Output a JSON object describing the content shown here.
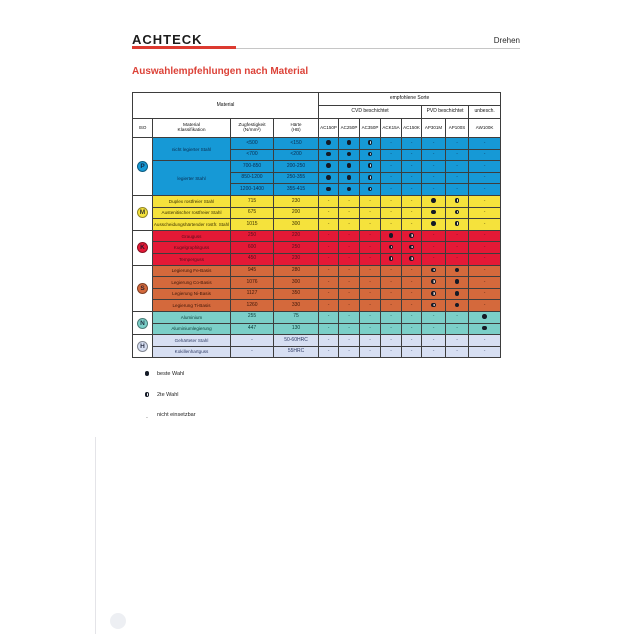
{
  "page": {
    "brand": "ACHTECK",
    "section_label": "Drehen",
    "title": "Auswahlempfehlungen nach Material",
    "colors": {
      "accent_red": "#dc3a30"
    }
  },
  "table": {
    "header": {
      "material": "Material",
      "recommended": "empfohlene Sorte",
      "groups": [
        {
          "label": "CVD beschichtet",
          "span": 5
        },
        {
          "label": "PVD beschichtet",
          "span": 2
        },
        {
          "label": "unbesch.",
          "span": 1
        }
      ],
      "columns": {
        "iso": "ISO",
        "klass": "Material\nKlassifikation",
        "zug": "Zugfestigkeit\n(N/mm²)",
        "haerte": "Härte\n(HB)"
      },
      "grades": [
        "AC150P",
        "AC250P",
        "AC350P",
        "ACK15A",
        "AC150K",
        "AP301M",
        "AP100S",
        "AW100K"
      ]
    },
    "sections": [
      {
        "iso": "P",
        "color": "#1699d6",
        "text": "#0b2b4e",
        "rows": [
          {
            "material": "nicht legierter Stahl",
            "rowspan": 2,
            "zug": "<500",
            "haerte": "<150",
            "ratings": [
              "best",
              "best",
              "second",
              "none",
              "none",
              "none",
              "none",
              "none"
            ]
          },
          {
            "zug": "<700",
            "haerte": "<200",
            "ratings": [
              "best",
              "best",
              "second",
              "none",
              "none",
              "none",
              "none",
              "none"
            ]
          },
          {
            "material": "legierter Stahl",
            "rowspan": 3,
            "zug": "700-850",
            "haerte": "200-250",
            "ratings": [
              "best",
              "best",
              "second",
              "none",
              "none",
              "none",
              "none",
              "none"
            ]
          },
          {
            "zug": "850-1200",
            "haerte": "250-355",
            "ratings": [
              "best",
              "best",
              "second",
              "none",
              "none",
              "none",
              "none",
              "none"
            ]
          },
          {
            "zug": "1200-1400",
            "haerte": "355-415",
            "ratings": [
              "best",
              "best",
              "second",
              "none",
              "none",
              "none",
              "none",
              "none"
            ]
          }
        ]
      },
      {
        "iso": "M",
        "color": "#f5e23c",
        "text": "#3c3200",
        "rows": [
          {
            "material": "Duplex rostfreier Stahl",
            "zug": "715",
            "haerte": "230",
            "ratings": [
              "none",
              "none",
              "none",
              "none",
              "none",
              "best",
              "second",
              "none"
            ]
          },
          {
            "material": "Austenitischer rostfreier Stahl",
            "zug": "675",
            "haerte": "200",
            "ratings": [
              "none",
              "none",
              "none",
              "none",
              "none",
              "best",
              "second",
              "none"
            ]
          },
          {
            "material": "Ausscheidungshärtender rostfr. Stahl",
            "zug": "1015",
            "haerte": "300",
            "ratings": [
              "none",
              "none",
              "none",
              "none",
              "none",
              "best",
              "second",
              "none"
            ]
          }
        ]
      },
      {
        "iso": "K",
        "color": "#e41936",
        "text": "#57101c",
        "rows": [
          {
            "material": "Grauguss",
            "zug": "250",
            "haerte": "220",
            "ratings": [
              "none",
              "none",
              "none",
              "best",
              "second",
              "none",
              "none",
              "none"
            ]
          },
          {
            "material": "Kugelgraphitguss",
            "zug": "600",
            "haerte": "250",
            "ratings": [
              "none",
              "none",
              "none",
              "second",
              "second",
              "none",
              "none",
              "none"
            ]
          },
          {
            "material": "Temperguss",
            "zug": "450",
            "haerte": "230",
            "ratings": [
              "none",
              "none",
              "none",
              "second",
              "second",
              "none",
              "none",
              "none"
            ]
          }
        ]
      },
      {
        "iso": "S",
        "color": "#d4693c",
        "text": "#3f1708",
        "rows": [
          {
            "material": "Legierung Fe-Basis",
            "zug": "945",
            "haerte": "280",
            "ratings": [
              "none",
              "none",
              "none",
              "none",
              "none",
              "second",
              "best",
              "none"
            ]
          },
          {
            "material": "Legierung Co-Basis",
            "zug": "1076",
            "haerte": "300",
            "ratings": [
              "none",
              "none",
              "none",
              "none",
              "none",
              "second",
              "best",
              "none"
            ]
          },
          {
            "material": "Legierung Ni-Basis",
            "zug": "1127",
            "haerte": "350",
            "ratings": [
              "none",
              "none",
              "none",
              "none",
              "none",
              "second",
              "best",
              "none"
            ]
          },
          {
            "material": "Legierung Ti-Basis",
            "zug": "1260",
            "haerte": "330",
            "ratings": [
              "none",
              "none",
              "none",
              "none",
              "none",
              "second",
              "best",
              "none"
            ]
          }
        ]
      },
      {
        "iso": "N",
        "color": "#7bcfc8",
        "text": "#0f403c",
        "rows": [
          {
            "material": "Aluminium",
            "zug": "255",
            "haerte": "75",
            "ratings": [
              "none",
              "none",
              "none",
              "none",
              "none",
              "none",
              "none",
              "best"
            ]
          },
          {
            "material": "Aluminiumlegierung",
            "zug": "447",
            "haerte": "130",
            "ratings": [
              "none",
              "none",
              "none",
              "none",
              "none",
              "none",
              "none",
              "best"
            ]
          }
        ]
      },
      {
        "iso": "H",
        "color": "#d7dff2",
        "text": "#2f3c66",
        "rows": [
          {
            "material": "Gehärteter Stahl",
            "zug": "-",
            "haerte": "50-60HRC",
            "ratings": [
              "none",
              "none",
              "none",
              "none",
              "none",
              "none",
              "none",
              "none"
            ]
          },
          {
            "material": "Kokillenhartguss",
            "zug": "-",
            "haerte": "55HRC",
            "ratings": [
              "none",
              "none",
              "none",
              "none",
              "none",
              "none",
              "none",
              "none"
            ]
          }
        ]
      }
    ],
    "legend": [
      {
        "symbol": "best",
        "label": "beste Wahl"
      },
      {
        "symbol": "second",
        "label": "2te Wahl"
      },
      {
        "symbol": "none",
        "label": "nicht einsetzbar"
      }
    ]
  }
}
